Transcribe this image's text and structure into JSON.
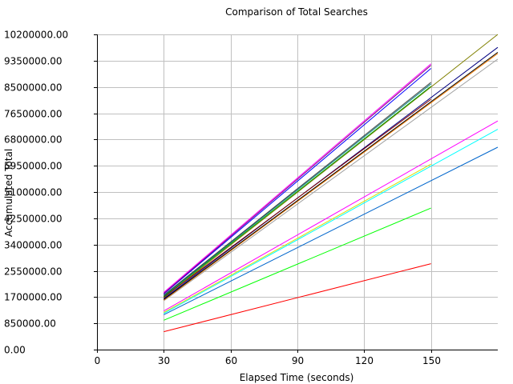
{
  "chart_data": {
    "type": "line",
    "title": "Comparison of Total Searches",
    "xlabel": "Elapsed Time (seconds)",
    "ylabel": "Accumulated Total",
    "xlim": [
      0,
      180
    ],
    "ylim": [
      0,
      10200000
    ],
    "x_ticks": [
      0,
      30,
      60,
      90,
      120,
      150
    ],
    "x_tick_labels": [
      "0",
      "30",
      "60",
      "90",
      "120",
      "150"
    ],
    "y_ticks": [
      0,
      850000,
      1700000,
      2550000,
      3400000,
      4250000,
      5100000,
      5950000,
      6800000,
      7650000,
      8500000,
      9350000,
      10200000
    ],
    "y_tick_labels": [
      "0.00",
      "850000.00",
      "1700000.00",
      "2550000.00",
      "3400000.00",
      "4250000.00",
      "5100000.00",
      "5950000.00",
      "6800000.00",
      "7650000.00",
      "8500000.00",
      "9350000.00",
      "10200000.00"
    ],
    "grid": true,
    "legend": "none",
    "series": [
      {
        "color": "#ff0000",
        "x": [
          30,
          150
        ],
        "values": [
          580000,
          2780000
        ]
      },
      {
        "color": "#00ff00",
        "x": [
          30,
          150
        ],
        "values": [
          950000,
          4580000
        ]
      },
      {
        "color": "#0066cc",
        "x": [
          30,
          180
        ],
        "values": [
          1130000,
          6550000
        ]
      },
      {
        "color": "#00ffff",
        "x": [
          30,
          180
        ],
        "values": [
          1170000,
          7130000
        ]
      },
      {
        "color": "#dddd00",
        "x": [
          30,
          150
        ],
        "values": [
          1200000,
          6000000
        ]
      },
      {
        "color": "#ff00ff",
        "x": [
          30,
          180
        ],
        "values": [
          1250000,
          7400000
        ]
      },
      {
        "color": "#a0a0a0",
        "x": [
          30,
          180
        ],
        "values": [
          1580000,
          9400000
        ]
      },
      {
        "color": "#ff8000",
        "x": [
          30,
          180
        ],
        "values": [
          1600000,
          9580000
        ]
      },
      {
        "color": "#000000",
        "x": [
          30,
          180
        ],
        "values": [
          1620000,
          9620000
        ]
      },
      {
        "color": "#000080",
        "x": [
          30,
          180
        ],
        "values": [
          1650000,
          9780000
        ]
      },
      {
        "color": "#808000",
        "x": [
          30,
          180
        ],
        "values": [
          1680000,
          10200000
        ]
      },
      {
        "color": "#800000",
        "x": [
          30,
          150
        ],
        "values": [
          1700000,
          8100000
        ]
      },
      {
        "color": "#00a000",
        "x": [
          30,
          150
        ],
        "values": [
          1720000,
          8520000
        ]
      },
      {
        "color": "#008080",
        "x": [
          30,
          150
        ],
        "values": [
          1740000,
          8600000
        ]
      },
      {
        "color": "#404040",
        "x": [
          30,
          150
        ],
        "values": [
          1760000,
          8650000
        ]
      },
      {
        "color": "#0000ff",
        "x": [
          30,
          150
        ],
        "values": [
          1800000,
          9100000
        ]
      },
      {
        "color": "#800080",
        "x": [
          30,
          150
        ],
        "values": [
          1820000,
          9200000
        ]
      },
      {
        "color": "#ff00ff",
        "x": [
          30,
          150
        ],
        "values": [
          1850000,
          9250000
        ]
      }
    ]
  }
}
